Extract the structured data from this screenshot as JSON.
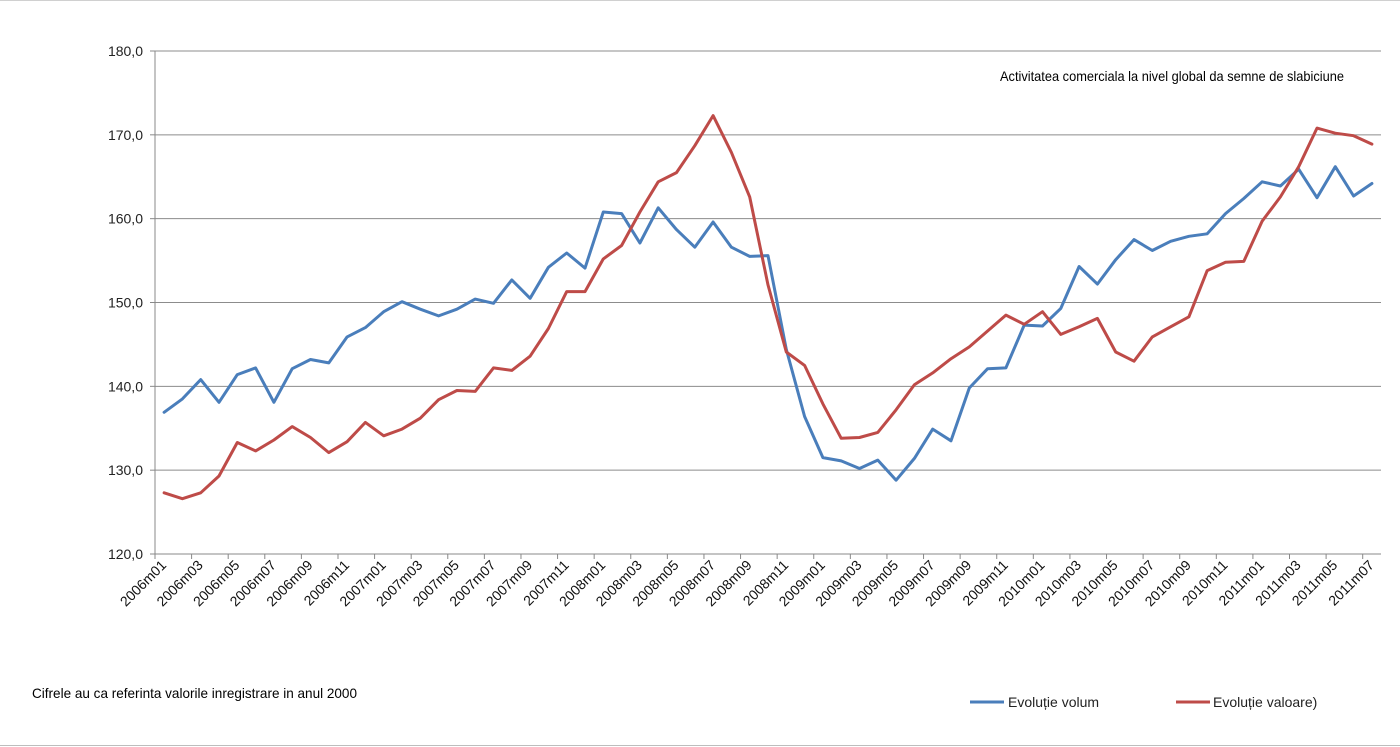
{
  "chart_data": {
    "type": "line",
    "title": "Activitatea comerciala la nivel global da semne de slabiciune",
    "footnote": "Cifrele au ca referinta valorile inregistrare in anul 2000",
    "ylim": [
      120,
      180
    ],
    "y_ticks": [
      "120,0",
      "130,0",
      "140,0",
      "150,0",
      "160,0",
      "170,0",
      "180,0"
    ],
    "x_tick_labels": [
      "2006m01",
      "2006m03",
      "2006m05",
      "2006m07",
      "2006m09",
      "2006m11",
      "2007m01",
      "2007m03",
      "2007m05",
      "2007m07",
      "2007m09",
      "2007m11",
      "2008m01",
      "2008m03",
      "2008m05",
      "2008m07",
      "2008m09",
      "2008m11",
      "2009m01",
      "2009m03",
      "2009m05",
      "2009m07",
      "2009m09",
      "2009m11",
      "2010m01",
      "2010m03",
      "2010m05",
      "2010m07",
      "2010m09",
      "2010m11",
      "2011m01",
      "2011m03",
      "2011m05",
      "2011m07"
    ],
    "legend_position": "bottom-right",
    "grid": true,
    "series": [
      {
        "name": "Evoluție volum",
        "color": "#4a7ebb",
        "values": [
          136.9,
          138.5,
          140.8,
          138.1,
          141.4,
          142.2,
          138.1,
          142.1,
          143.2,
          142.8,
          145.9,
          147.0,
          148.9,
          150.1,
          149.2,
          148.4,
          149.2,
          150.4,
          149.9,
          152.7,
          150.5,
          154.2,
          155.9,
          154.1,
          160.8,
          160.6,
          157.1,
          161.3,
          158.7,
          156.6,
          159.6,
          156.6,
          155.5,
          155.6,
          144.4,
          136.4,
          131.5,
          131.1,
          130.2,
          131.2,
          128.8,
          131.4,
          134.9,
          133.5,
          139.8,
          142.1,
          142.2,
          147.3,
          147.2,
          149.3,
          154.3,
          152.2,
          155.1,
          157.5,
          156.2,
          157.3,
          157.9,
          158.2,
          160.6,
          162.4,
          164.4,
          163.9,
          165.9,
          162.5,
          166.2,
          162.7,
          164.2
        ]
      },
      {
        "name": "Evoluție valoare)",
        "color": "#be4b48",
        "values": [
          127.3,
          126.6,
          127.3,
          129.3,
          133.3,
          132.3,
          133.6,
          135.2,
          133.9,
          132.1,
          133.4,
          135.7,
          134.1,
          134.9,
          136.2,
          138.4,
          139.5,
          139.4,
          142.2,
          141.9,
          143.6,
          146.9,
          151.3,
          151.3,
          155.2,
          156.8,
          160.8,
          164.4,
          165.5,
          168.7,
          172.3,
          167.9,
          162.6,
          152.1,
          144.1,
          142.5,
          137.9,
          133.8,
          133.9,
          134.5,
          137.2,
          140.2,
          141.6,
          143.3,
          144.7,
          146.6,
          148.5,
          147.4,
          148.9,
          146.2,
          147.1,
          148.1,
          144.1,
          143.0,
          145.9,
          147.1,
          148.3,
          153.8,
          154.8,
          154.9,
          159.7,
          162.6,
          166.2,
          170.8,
          170.2,
          169.9,
          168.9
        ]
      }
    ]
  }
}
